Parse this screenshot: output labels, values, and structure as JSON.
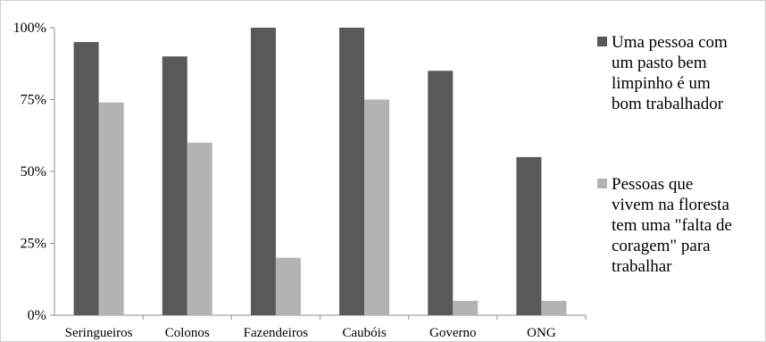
{
  "chart_data": {
    "type": "bar",
    "categories": [
      "Seringueiros",
      "Colonos",
      "Fazendeiros",
      "Caubóis",
      "Governo",
      "ONG"
    ],
    "series": [
      {
        "name": "Uma pessoa com um pasto bem limpinho é um bom trabalhador",
        "name_lines": [
          "Uma pessoa com",
          "um pasto bem",
          "limpinho é um",
          "bom trabalhador"
        ],
        "color": "#595959",
        "values": [
          95,
          90,
          100,
          100,
          85,
          55
        ]
      },
      {
        "name": "Pessoas que vivem na floresta tem uma \"falta de coragem\" para trabalhar",
        "name_lines": [
          "Pessoas que",
          "vivem na floresta",
          "tem uma \"falta de",
          "coragem\" para",
          "trabalhar"
        ],
        "color": "#b3b3b3",
        "values": [
          74,
          60,
          20,
          75,
          5,
          5
        ]
      }
    ],
    "y_ticks": [
      "0%",
      "25%",
      "50%",
      "75%",
      "100%"
    ],
    "ylim": [
      0,
      100
    ],
    "title": "",
    "xlabel": "",
    "ylabel": "",
    "grid": false,
    "legend": "right"
  }
}
